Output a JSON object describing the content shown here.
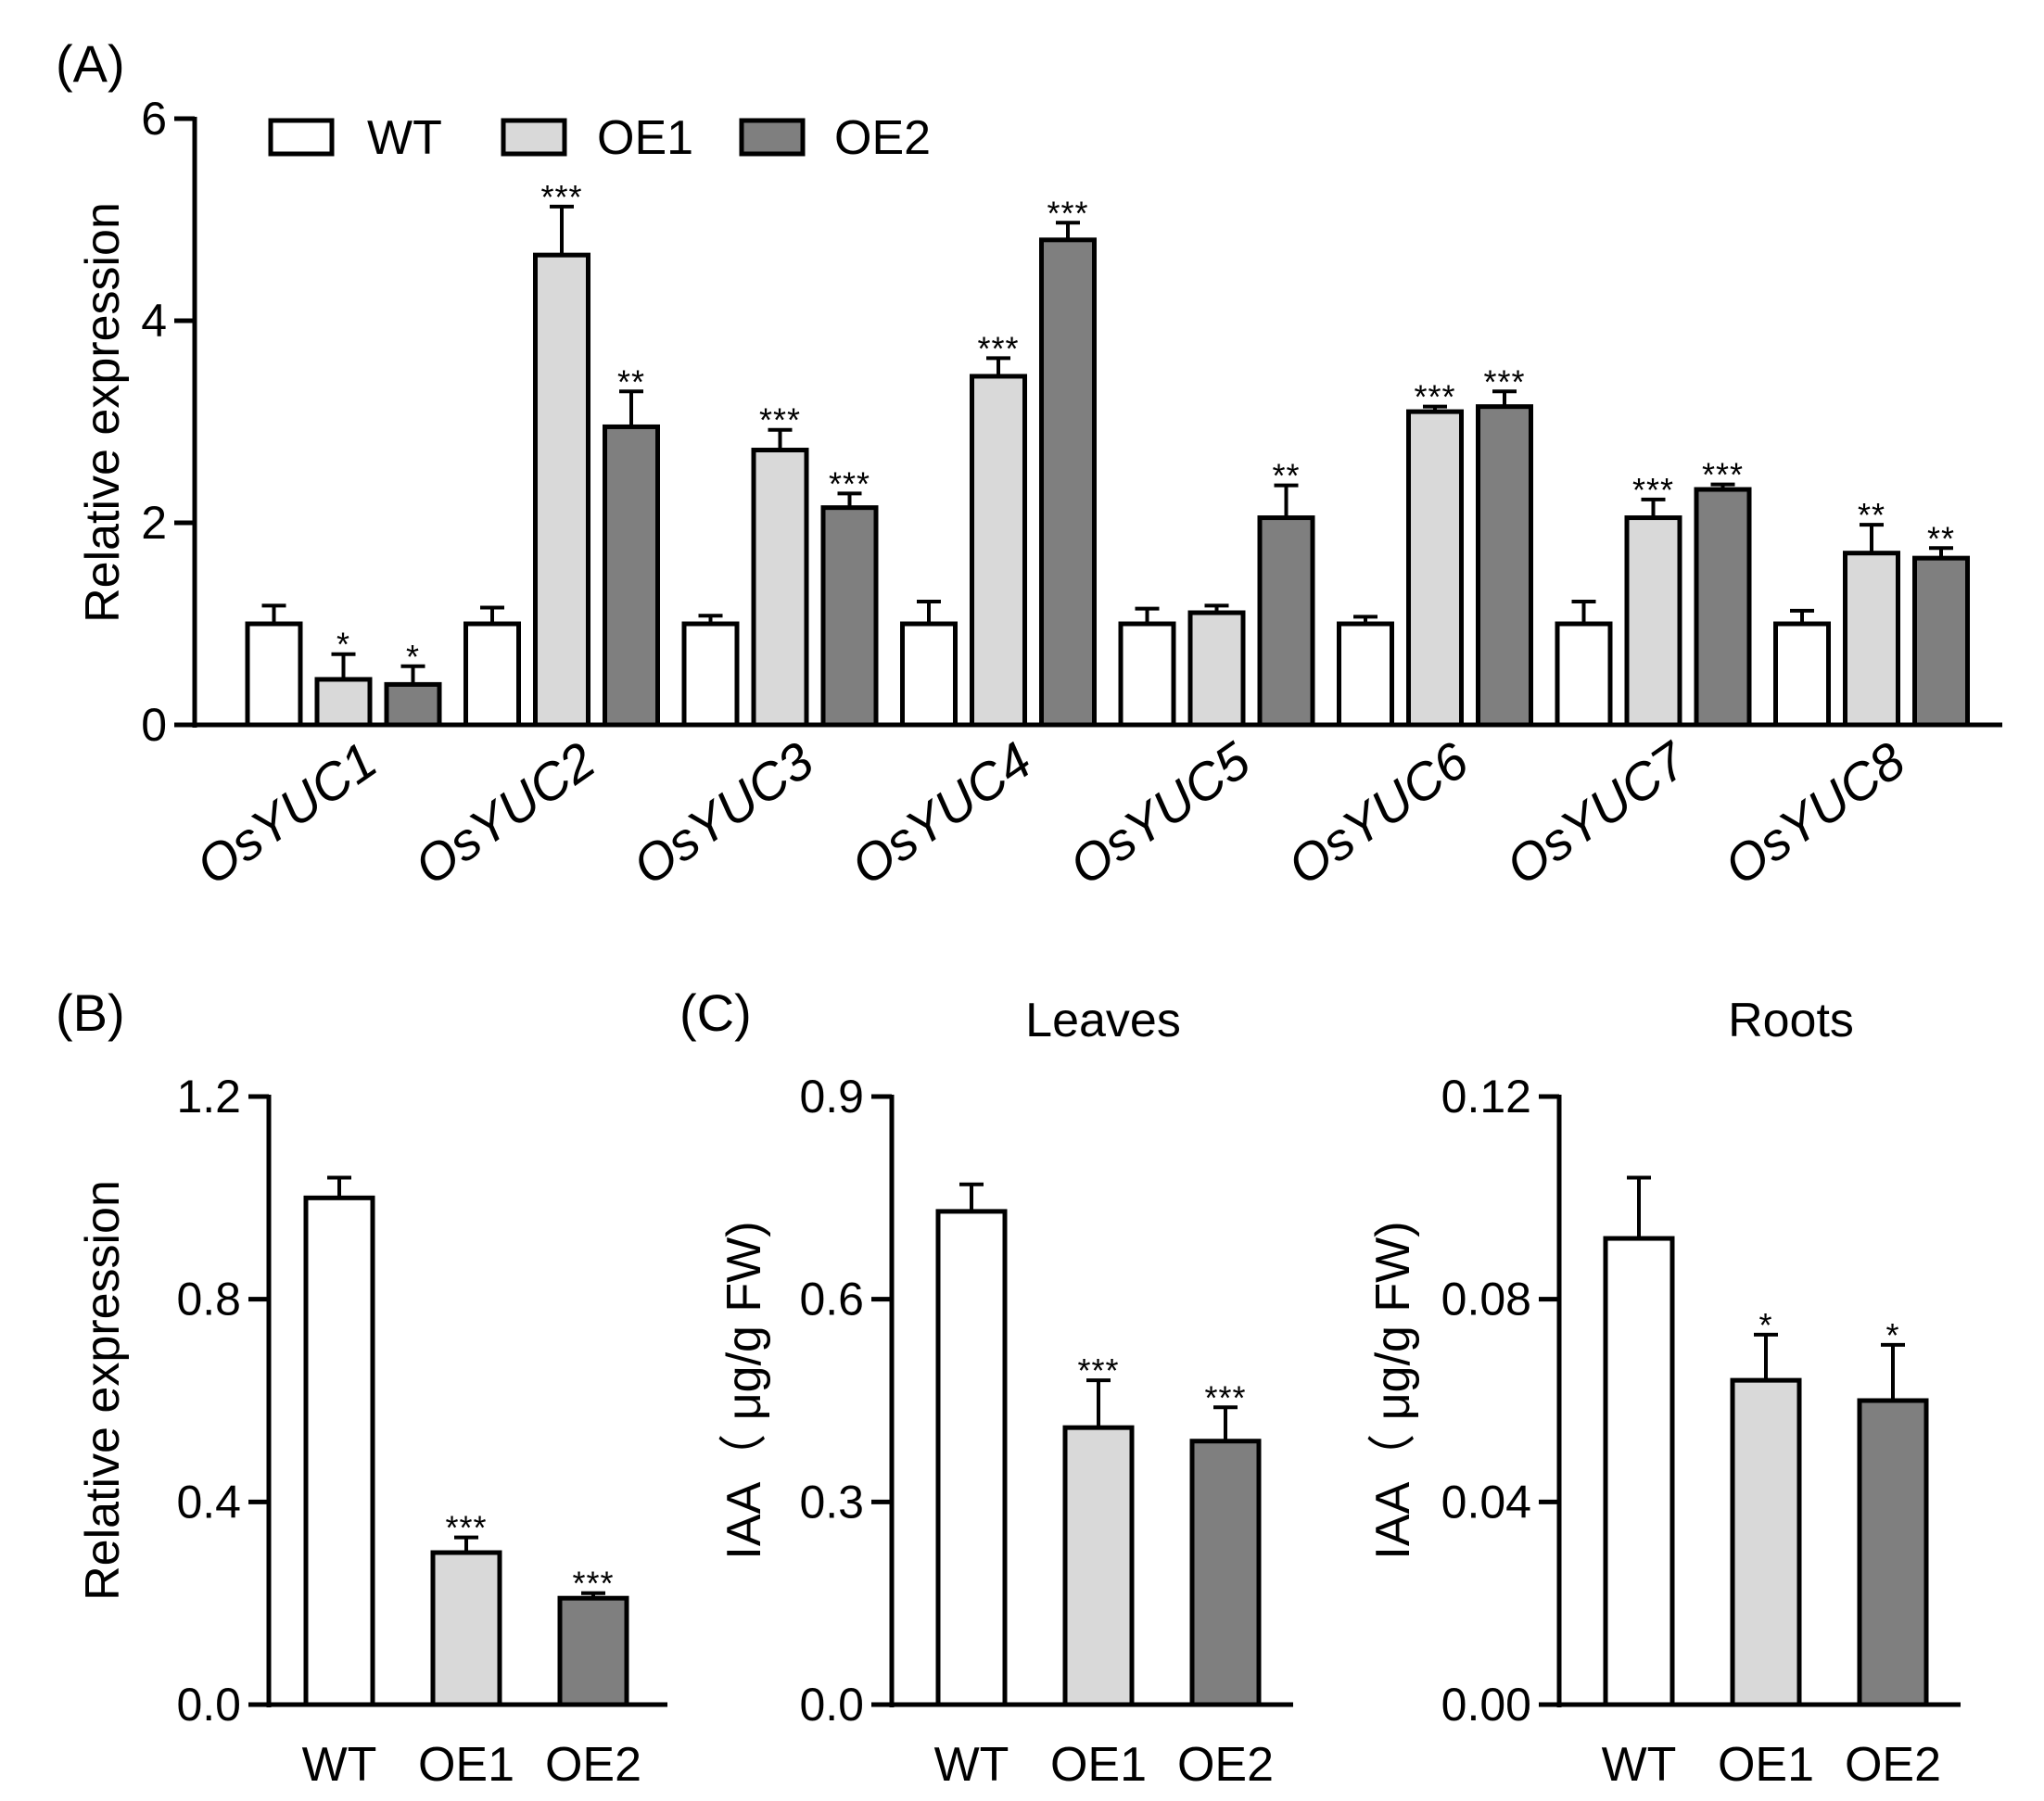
{
  "series_colors": {
    "WT": "#ffffff",
    "OE1": "#d9d9d9",
    "OE2": "#7f7f7f"
  },
  "chart_data": [
    {
      "id": "A",
      "panel_label": "(A)",
      "type": "bar",
      "title": "",
      "ylabel": "Relative expression",
      "xlabel": "",
      "ylim": [
        0,
        6
      ],
      "yticks": [
        0,
        2,
        4,
        6
      ],
      "ytick_labels": [
        "0",
        "2",
        "4",
        "6"
      ],
      "categories": [
        "OsYUC1",
        "OsYUC2",
        "OsYUC3",
        "OsYUC4",
        "OsYUC5",
        "OsYUC6",
        "OsYUC7",
        "OsYUC8"
      ],
      "legend": {
        "position": "top-left",
        "entries": [
          "WT",
          "OE1",
          "OE2"
        ]
      },
      "series": [
        {
          "name": "WT",
          "values": [
            1.0,
            1.0,
            1.0,
            1.0,
            1.0,
            1.0,
            1.0,
            1.0
          ],
          "errors": [
            0.18,
            0.16,
            0.08,
            0.22,
            0.15,
            0.07,
            0.22,
            0.13
          ],
          "significance": [
            "",
            "",
            "",
            "",
            "",
            "",
            "",
            ""
          ]
        },
        {
          "name": "OE1",
          "values": [
            0.45,
            4.65,
            2.72,
            3.45,
            1.11,
            3.1,
            2.05,
            1.7
          ],
          "errors": [
            0.25,
            0.48,
            0.2,
            0.18,
            0.07,
            0.05,
            0.18,
            0.28
          ],
          "significance": [
            "*",
            "***",
            "***",
            "***",
            "",
            "***",
            "***",
            "**"
          ]
        },
        {
          "name": "OE2",
          "values": [
            0.4,
            2.95,
            2.15,
            4.8,
            2.05,
            3.15,
            2.33,
            1.65
          ],
          "errors": [
            0.18,
            0.35,
            0.14,
            0.17,
            0.32,
            0.15,
            0.05,
            0.1
          ],
          "significance": [
            "*",
            "**",
            "***",
            "***",
            "**",
            "***",
            "***",
            "**"
          ]
        }
      ]
    },
    {
      "id": "B",
      "panel_label": "(B)",
      "type": "bar",
      "title": "",
      "ylabel": "Relative expression",
      "xlabel": "",
      "ylim": [
        0,
        1.2
      ],
      "yticks": [
        0,
        0.4,
        0.8,
        1.2
      ],
      "ytick_labels": [
        "0.0",
        "0.4",
        "0.8",
        "1.2"
      ],
      "categories": [
        "WT",
        "OE1",
        "OE2"
      ],
      "values": [
        1.0,
        0.3,
        0.21
      ],
      "errors": [
        0.04,
        0.03,
        0.01
      ],
      "significance": [
        "",
        "***",
        "***"
      ]
    },
    {
      "id": "C-leaves",
      "panel_label": "(C)",
      "type": "bar",
      "title": "Leaves",
      "ylabel": "IAA（ μg/g FW)",
      "xlabel": "",
      "ylim": [
        0,
        0.9
      ],
      "yticks": [
        0,
        0.3,
        0.6,
        0.9
      ],
      "ytick_labels": [
        "0.0",
        "0.3",
        "0.6",
        "0.9"
      ],
      "categories": [
        "WT",
        "OE1",
        "OE2"
      ],
      "values": [
        0.73,
        0.41,
        0.39
      ],
      "errors": [
        0.04,
        0.07,
        0.05
      ],
      "significance": [
        "",
        "***",
        "***"
      ]
    },
    {
      "id": "C-roots",
      "panel_label": "",
      "type": "bar",
      "title": "Roots",
      "ylabel": "IAA（ μg/g FW)",
      "xlabel": "",
      "ylim": [
        0,
        0.12
      ],
      "yticks": [
        0,
        0.04,
        0.08,
        0.12
      ],
      "ytick_labels": [
        "0.00",
        "0.04",
        "0.08",
        "0.12"
      ],
      "categories": [
        "WT",
        "OE1",
        "OE2"
      ],
      "values": [
        0.092,
        0.064,
        0.06
      ],
      "errors": [
        0.012,
        0.009,
        0.011
      ],
      "significance": [
        "",
        "*",
        "*"
      ]
    }
  ]
}
